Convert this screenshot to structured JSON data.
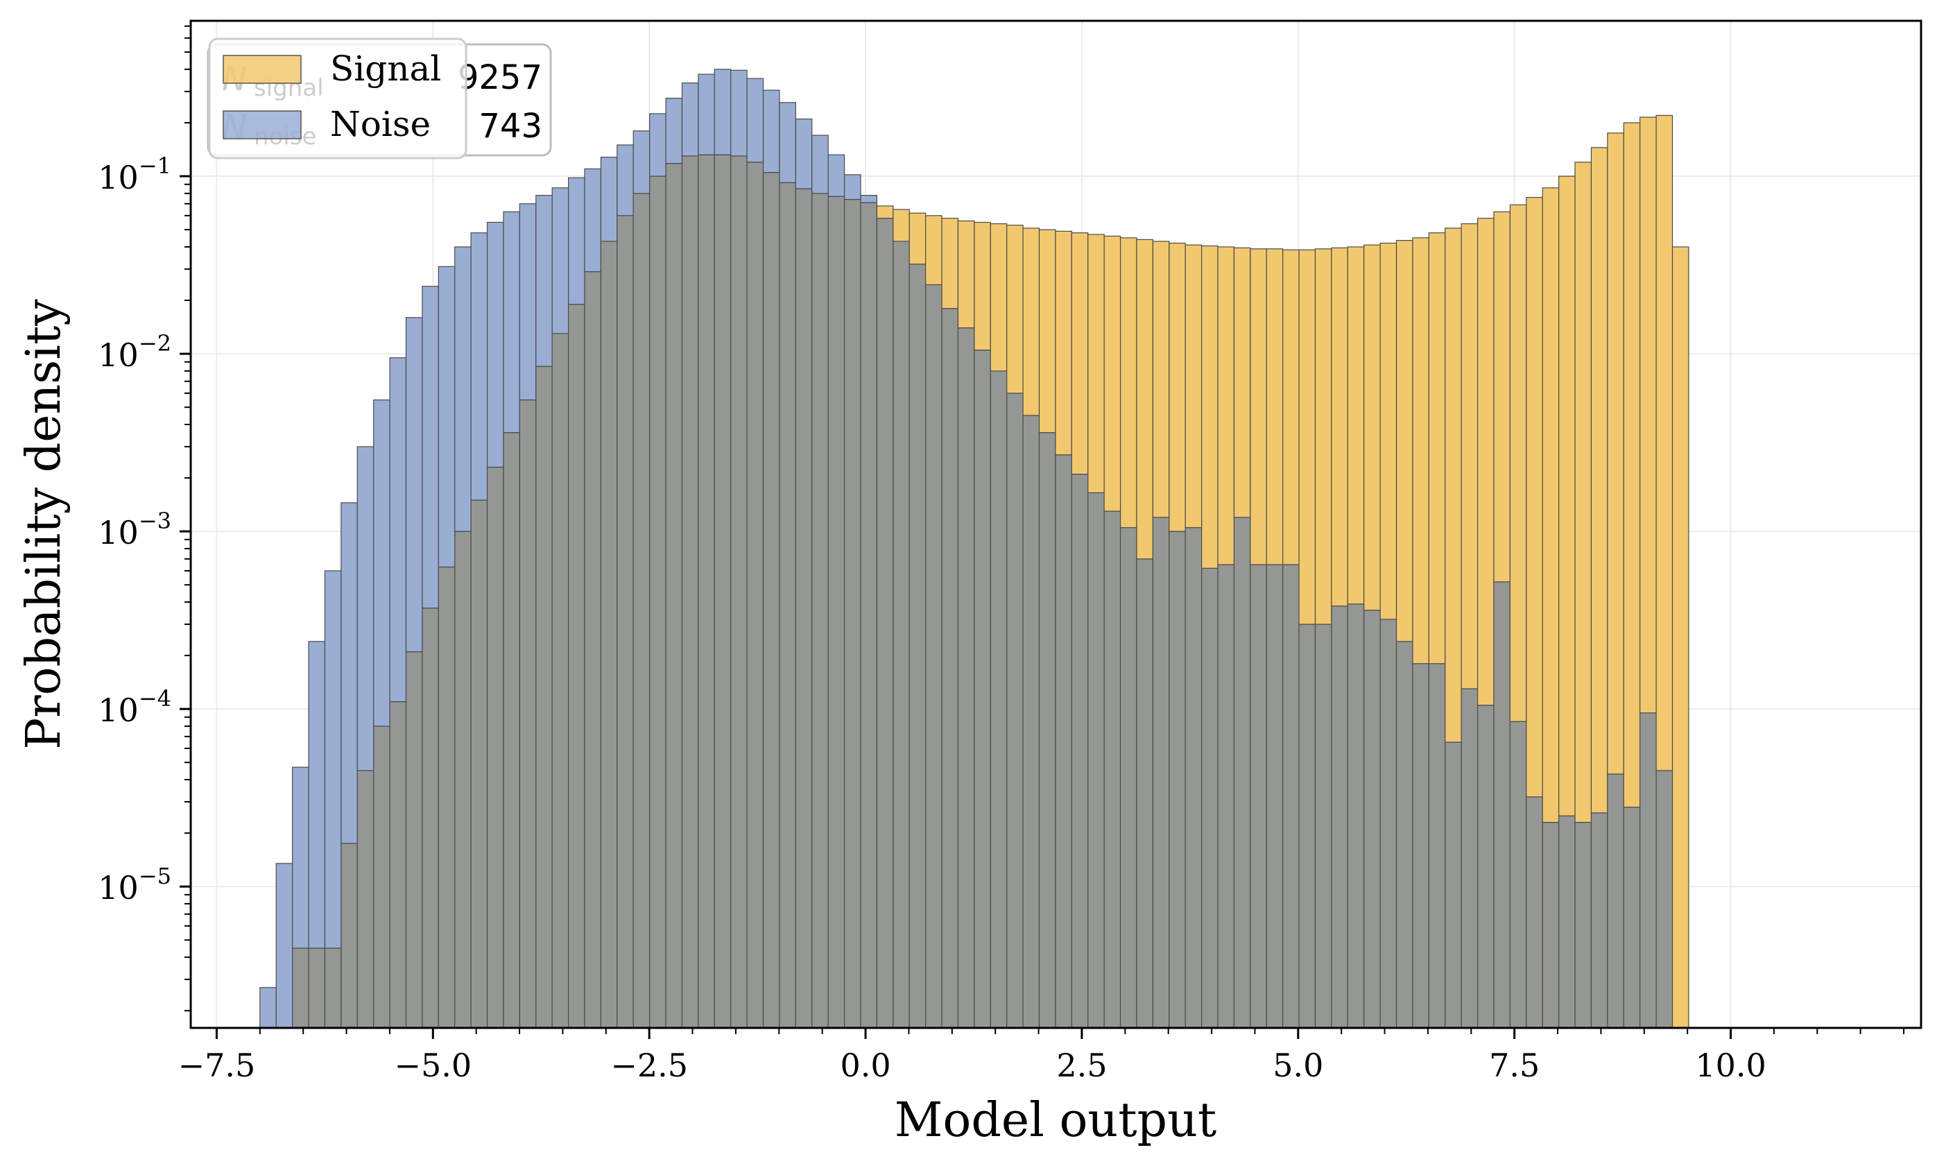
{
  "chart_data": {
    "type": "bar",
    "xlabel": "Model output",
    "ylabel": "Probability density",
    "y_scale": "log",
    "xlim": [
      -7.8,
      12.2
    ],
    "ylim": [
      1.6e-06,
      0.75
    ],
    "x_ticks": [
      {
        "value": -7.5,
        "label": "−7.5"
      },
      {
        "value": -5.0,
        "label": "−5.0"
      },
      {
        "value": -2.5,
        "label": "−2.5"
      },
      {
        "value": 0.0,
        "label": "0.0"
      },
      {
        "value": 2.5,
        "label": "2.5"
      },
      {
        "value": 5.0,
        "label": "5.0"
      },
      {
        "value": 7.5,
        "label": "7.5"
      },
      {
        "value": 10.0,
        "label": "10.0"
      }
    ],
    "y_ticks": [
      {
        "value": 1e-05,
        "base": "10",
        "exp": "−5"
      },
      {
        "value": 0.0001,
        "base": "10",
        "exp": "−4"
      },
      {
        "value": 0.001,
        "base": "10",
        "exp": "−3"
      },
      {
        "value": 0.01,
        "base": "10",
        "exp": "−2"
      },
      {
        "value": 0.1,
        "base": "10",
        "exp": "−1"
      }
    ],
    "grid": true,
    "legend_position": "top-left",
    "colors": {
      "signal": "#f2c86e",
      "noise": "#9aaed4",
      "overlap": "#959794"
    },
    "bin_start": -7.0,
    "bin_width": 0.18766,
    "series": [
      {
        "name": "Noise",
        "values": [
          2.7e-06,
          1.35e-05,
          4.7e-05,
          0.00024,
          0.0006,
          0.00145,
          0.003,
          0.0055,
          0.0095,
          0.016,
          0.024,
          0.031,
          0.04,
          0.048,
          0.055,
          0.063,
          0.07,
          0.078,
          0.086,
          0.098,
          0.11,
          0.128,
          0.15,
          0.18,
          0.225,
          0.275,
          0.335,
          0.375,
          0.4,
          0.395,
          0.355,
          0.305,
          0.26,
          0.21,
          0.17,
          0.132,
          0.102,
          0.078,
          0.058,
          0.043,
          0.032,
          0.0245,
          0.018,
          0.014,
          0.0105,
          0.008,
          0.006,
          0.0045,
          0.0036,
          0.0027,
          0.0021,
          0.00165,
          0.0013,
          0.00105,
          0.0007,
          0.0012,
          0.001,
          0.00105,
          0.00062,
          0.00065,
          0.0012,
          0.00065,
          0.00065,
          0.00065,
          0.0003,
          0.0003,
          0.00038,
          0.00039,
          0.00036,
          0.00032,
          0.00024,
          0.00018,
          0.00018,
          6.5e-05,
          0.00013,
          0.000105,
          0.00052,
          8.5e-05,
          3.2e-05,
          2.3e-05,
          2.5e-05,
          2.3e-05,
          2.6e-05,
          4.3e-05,
          2.8e-05,
          9.5e-05,
          4.5e-05
        ]
      },
      {
        "name": "Signal",
        "values": [
          null,
          null,
          4.5e-06,
          4.5e-06,
          4.5e-06,
          1.75e-05,
          4.5e-05,
          8e-05,
          0.00011,
          0.00021,
          0.00037,
          0.00063,
          0.001,
          0.0015,
          0.0023,
          0.0036,
          0.0055,
          0.0085,
          0.013,
          0.019,
          0.029,
          0.043,
          0.06,
          0.08,
          0.1,
          0.118,
          0.13,
          0.132,
          0.132,
          0.13,
          0.12,
          0.105,
          0.092,
          0.085,
          0.08,
          0.077,
          0.074,
          0.071,
          0.068,
          0.065,
          0.062,
          0.06,
          0.058,
          0.056,
          0.055,
          0.054,
          0.053,
          0.051,
          0.05,
          0.049,
          0.048,
          0.047,
          0.046,
          0.045,
          0.044,
          0.043,
          0.042,
          0.041,
          0.0405,
          0.04,
          0.0395,
          0.039,
          0.039,
          0.0385,
          0.0385,
          0.039,
          0.0395,
          0.04,
          0.041,
          0.042,
          0.0435,
          0.045,
          0.048,
          0.051,
          0.054,
          0.058,
          0.063,
          0.069,
          0.076,
          0.086,
          0.1,
          0.12,
          0.145,
          0.175,
          0.2,
          0.215,
          0.22,
          0.04
        ]
      }
    ],
    "overlay_text": [
      {
        "label": "N_signal",
        "value": "...9257"
      },
      {
        "label": "N_noise",
        "value": "...0743"
      }
    ]
  },
  "legend": {
    "items": [
      {
        "label": "Signal",
        "color": "#f2c86e"
      },
      {
        "label": "Noise",
        "color": "#9aaed4"
      }
    ]
  },
  "stats_box": {
    "signal_suffix": "9257",
    "noise_suffix": "743",
    "signal_prefix": "N",
    "signal_sub": "signal",
    "noise_prefix": "N",
    "noise_sub": "noise"
  }
}
